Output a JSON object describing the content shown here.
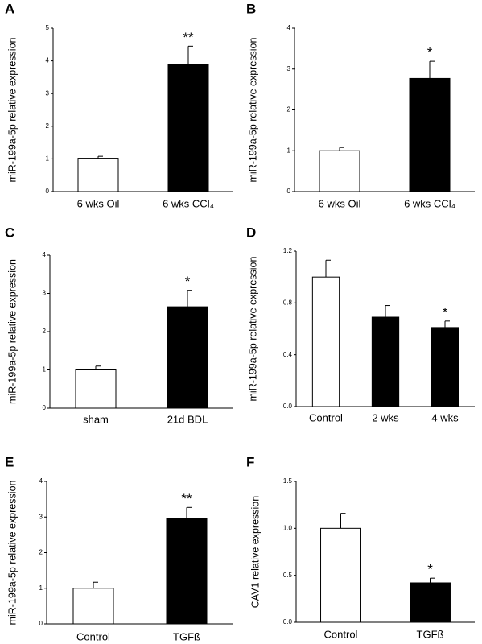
{
  "chart_data": [
    {
      "type": "bar",
      "panel": "A",
      "y_label": "miR-199a-5p relative expression",
      "categories": [
        "6 wks Oil",
        "6 wks CCl₄"
      ],
      "values": [
        1.02,
        3.88
      ],
      "errors": [
        0.06,
        0.57
      ],
      "colors": [
        "#ffffff",
        "#000000"
      ],
      "significance": [
        null,
        "**"
      ],
      "ylim": [
        0,
        5
      ],
      "yticks": [
        0,
        1,
        2,
        3,
        4,
        5
      ]
    },
    {
      "type": "bar",
      "panel": "B",
      "y_label": "miR-199a-5p relative expression",
      "categories": [
        "6 wks Oil",
        "6 wks CCl₄"
      ],
      "values": [
        1.0,
        2.77
      ],
      "errors": [
        0.08,
        0.42
      ],
      "colors": [
        "#ffffff",
        "#000000"
      ],
      "significance": [
        null,
        "*"
      ],
      "ylim": [
        0,
        4
      ],
      "yticks": [
        0,
        1,
        2,
        3,
        4
      ]
    },
    {
      "type": "bar",
      "panel": "C",
      "y_label": "miR-199a-5p relative expression",
      "categories": [
        "sham",
        "21d BDL"
      ],
      "values": [
        1.0,
        2.65
      ],
      "errors": [
        0.1,
        0.43
      ],
      "colors": [
        "#ffffff",
        "#000000"
      ],
      "significance": [
        null,
        "*"
      ],
      "ylim": [
        0,
        4
      ],
      "yticks": [
        0,
        1,
        2,
        3,
        4
      ]
    },
    {
      "type": "bar",
      "panel": "D",
      "y_label": "miR-199a-5p relative expression",
      "categories": [
        "Control",
        "2 wks",
        "4 wks"
      ],
      "values": [
        1.0,
        0.69,
        0.61
      ],
      "errors": [
        0.13,
        0.09,
        0.05
      ],
      "colors": [
        "#ffffff",
        "#000000",
        "#000000"
      ],
      "significance": [
        null,
        null,
        "*"
      ],
      "ylim": [
        0,
        1.2
      ],
      "yticks": [
        {
          "value": 0,
          "label": "0.0"
        },
        {
          "value": 0.4,
          "label": "0.4"
        },
        {
          "value": 0.8,
          "label": "0.8"
        },
        {
          "value": 1.2,
          "label": "1.2"
        }
      ]
    },
    {
      "type": "bar",
      "panel": "E",
      "y_label": "miR-199a-5p relative  expression",
      "categories": [
        "Control",
        "TGFß"
      ],
      "values": [
        1.0,
        2.97
      ],
      "errors": [
        0.17,
        0.3
      ],
      "colors": [
        "#ffffff",
        "#000000"
      ],
      "significance": [
        null,
        "**"
      ],
      "ylim": [
        0,
        4
      ],
      "yticks": [
        0,
        1,
        2,
        3,
        4
      ]
    },
    {
      "type": "bar",
      "panel": "F",
      "y_label": "CAV1 relative expression",
      "categories": [
        "Control",
        "TGFß"
      ],
      "values": [
        1.0,
        0.42
      ],
      "errors": [
        0.16,
        0.05
      ],
      "colors": [
        "#ffffff",
        "#000000"
      ],
      "significance": [
        null,
        "*"
      ],
      "ylim": [
        0,
        1.5
      ],
      "yticks": [
        {
          "value": 0,
          "label": "0.0"
        },
        {
          "value": 0.5,
          "label": "0.5"
        },
        {
          "value": 1.0,
          "label": "1.0"
        },
        {
          "value": 1.5,
          "label": "1.5"
        }
      ]
    }
  ]
}
